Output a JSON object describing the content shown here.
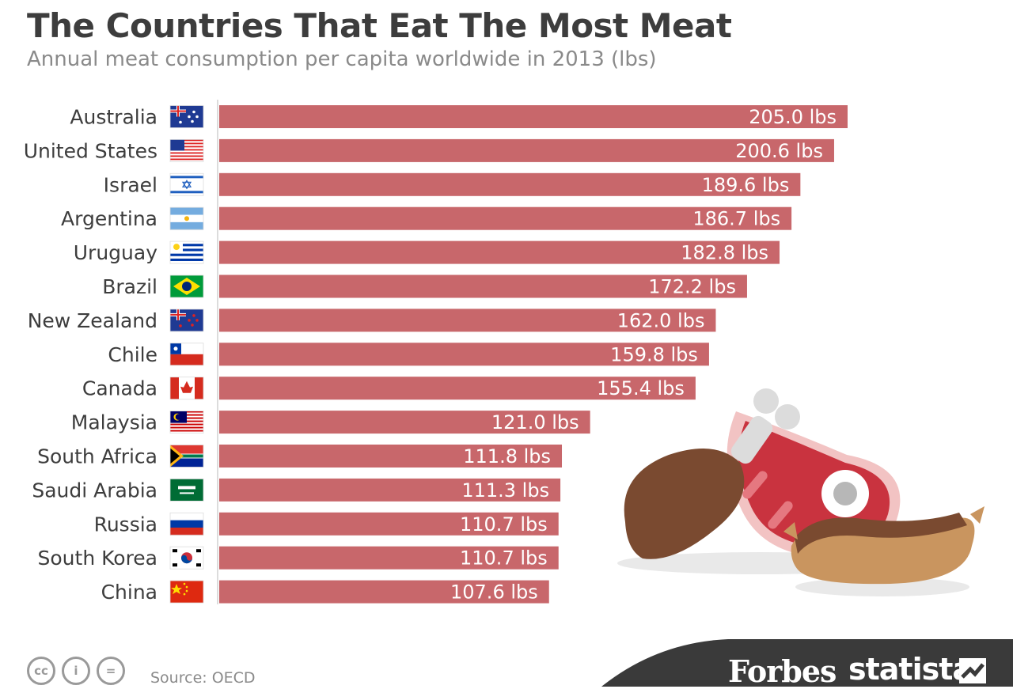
{
  "header": {
    "title": "The Countries That Eat The Most Meat",
    "subtitle": "Annual meat consumption per capita worldwide in 2013 (lbs)"
  },
  "chart_data": {
    "type": "bar",
    "orientation": "horizontal",
    "categories": [
      "Australia",
      "United States",
      "Israel",
      "Argentina",
      "Uruguay",
      "Brazil",
      "New Zealand",
      "Chile",
      "Canada",
      "Malaysia",
      "South Africa",
      "Saudi Arabia",
      "Russia",
      "South Korea",
      "China"
    ],
    "values": [
      205.0,
      200.6,
      189.6,
      186.7,
      182.8,
      172.2,
      162.0,
      159.8,
      155.4,
      121.0,
      111.8,
      111.3,
      110.7,
      110.7,
      107.6
    ],
    "value_labels": [
      "205.0 lbs",
      "200.6 lbs",
      "189.6 lbs",
      "186.7 lbs",
      "182.8 lbs",
      "172.2 lbs",
      "162.0 lbs",
      "159.8 lbs",
      "155.4 lbs",
      "121.0 lbs",
      "111.8 lbs",
      "111.3 lbs",
      "110.7 lbs",
      "110.7 lbs",
      "107.6 lbs"
    ],
    "unit": "lbs",
    "bar_color": "#c8676b",
    "axis_visible": false,
    "grid": false
  },
  "footer": {
    "source": "Source: OECD",
    "brand_forbes": "Forbes",
    "brand_statista": "statista",
    "license_icons": [
      "cc",
      "i",
      "="
    ]
  },
  "colors": {
    "title": "#3d3d3d",
    "subtitle": "#8a8a8a",
    "bar": "#c8676b",
    "footer_band": "#3a3a3a"
  }
}
